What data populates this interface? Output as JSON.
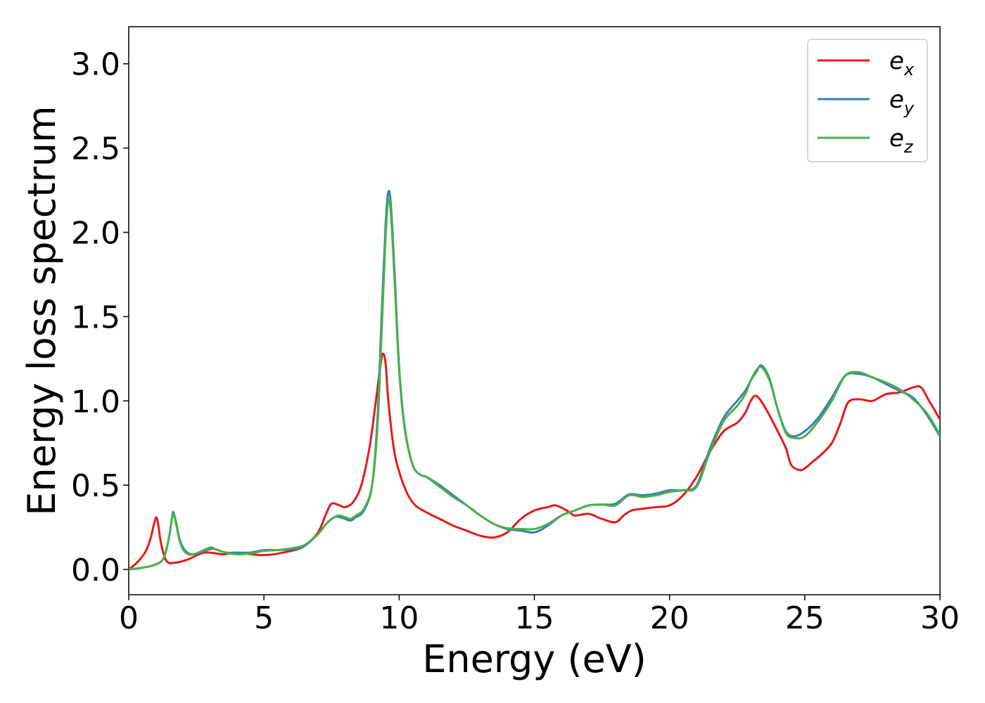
{
  "chart_data": {
    "type": "line",
    "title": "",
    "xlabel": "Energy (eV)",
    "ylabel": "Energy loss spectrum",
    "xlim": [
      0,
      30
    ],
    "ylim": [
      -0.15,
      3.22
    ],
    "xticks": [
      0,
      5,
      10,
      15,
      20,
      25,
      30
    ],
    "xtick_labels": [
      "0",
      "5",
      "10",
      "15",
      "20",
      "25",
      "30"
    ],
    "yticks": [
      0.0,
      0.5,
      1.0,
      1.5,
      2.0,
      2.5,
      3.0
    ],
    "ytick_labels": [
      "0.0",
      "0.5",
      "1.0",
      "1.5",
      "2.0",
      "2.5",
      "3.0"
    ],
    "grid": false,
    "legend_position": "top-right",
    "series": [
      {
        "name": "e",
        "subscript": "x",
        "color": "#e41a1c",
        "x": [
          0,
          0.3,
          0.6,
          0.8,
          0.95,
          1.05,
          1.2,
          1.4,
          1.7,
          2.2,
          2.8,
          3.5,
          4.0,
          5.0,
          6.0,
          6.5,
          7.0,
          7.3,
          7.5,
          7.8,
          8.0,
          8.3,
          8.6,
          8.9,
          9.1,
          9.3,
          9.4,
          9.5,
          9.6,
          9.8,
          10.0,
          10.3,
          10.6,
          11.0,
          11.5,
          12.0,
          12.5,
          13.0,
          13.5,
          14.0,
          14.5,
          15.0,
          15.5,
          15.8,
          16.2,
          16.5,
          17.0,
          17.5,
          18.0,
          18.3,
          18.6,
          19.0,
          19.5,
          20.0,
          20.5,
          21.0,
          21.5,
          22.0,
          22.5,
          22.8,
          23.0,
          23.2,
          23.5,
          24.0,
          24.3,
          24.5,
          24.8,
          25.0,
          25.3,
          25.6,
          26.0,
          26.3,
          26.6,
          27.0,
          27.5,
          28.0,
          28.5,
          29.0,
          29.3,
          29.6,
          30.0
        ],
        "y": [
          0.0,
          0.04,
          0.1,
          0.18,
          0.28,
          0.3,
          0.15,
          0.05,
          0.04,
          0.06,
          0.1,
          0.09,
          0.1,
          0.085,
          0.11,
          0.14,
          0.22,
          0.33,
          0.39,
          0.38,
          0.37,
          0.4,
          0.5,
          0.72,
          0.95,
          1.2,
          1.28,
          1.22,
          1.0,
          0.72,
          0.58,
          0.45,
          0.38,
          0.34,
          0.3,
          0.26,
          0.23,
          0.2,
          0.19,
          0.22,
          0.3,
          0.35,
          0.37,
          0.38,
          0.35,
          0.32,
          0.33,
          0.3,
          0.28,
          0.32,
          0.35,
          0.36,
          0.37,
          0.38,
          0.44,
          0.55,
          0.7,
          0.82,
          0.87,
          0.93,
          1.0,
          1.03,
          0.97,
          0.82,
          0.72,
          0.62,
          0.59,
          0.6,
          0.64,
          0.68,
          0.75,
          0.86,
          0.99,
          1.01,
          1.0,
          1.04,
          1.05,
          1.08,
          1.08,
          1.0,
          0.89
        ]
      },
      {
        "name": "e",
        "subscript": "y",
        "color": "#377eb8",
        "x": [
          0,
          0.5,
          1.0,
          1.3,
          1.5,
          1.6,
          1.65,
          1.75,
          1.9,
          2.1,
          2.4,
          3.0,
          3.2,
          3.6,
          4.0,
          4.5,
          5.0,
          5.5,
          6.0,
          6.5,
          7.0,
          7.3,
          7.6,
          7.8,
          8.0,
          8.2,
          8.4,
          8.7,
          9.0,
          9.2,
          9.35,
          9.5,
          9.6,
          9.7,
          9.85,
          10.0,
          10.2,
          10.5,
          10.8,
          11.0,
          11.5,
          12.0,
          12.5,
          13.0,
          13.5,
          14.0,
          14.5,
          15.0,
          15.5,
          16.0,
          16.5,
          17.0,
          17.5,
          18.0,
          18.5,
          19.0,
          19.5,
          20.0,
          20.5,
          21.0,
          21.5,
          22.0,
          22.5,
          22.8,
          23.0,
          23.2,
          23.4,
          23.7,
          24.0,
          24.3,
          24.6,
          25.0,
          25.5,
          26.0,
          26.5,
          27.0,
          27.5,
          28.0,
          28.5,
          29.0,
          29.5,
          30.0
        ],
        "y": [
          0.0,
          0.01,
          0.03,
          0.07,
          0.2,
          0.31,
          0.34,
          0.28,
          0.17,
          0.11,
          0.09,
          0.12,
          0.12,
          0.1,
          0.1,
          0.1,
          0.115,
          0.115,
          0.12,
          0.14,
          0.21,
          0.27,
          0.31,
          0.31,
          0.3,
          0.29,
          0.31,
          0.35,
          0.5,
          0.9,
          1.5,
          2.05,
          2.24,
          2.15,
          1.7,
          1.2,
          0.85,
          0.62,
          0.56,
          0.55,
          0.5,
          0.44,
          0.38,
          0.32,
          0.27,
          0.24,
          0.23,
          0.22,
          0.26,
          0.32,
          0.35,
          0.38,
          0.385,
          0.39,
          0.445,
          0.44,
          0.45,
          0.47,
          0.47,
          0.5,
          0.72,
          0.9,
          1.0,
          1.06,
          1.12,
          1.17,
          1.21,
          1.13,
          0.95,
          0.82,
          0.79,
          0.82,
          0.9,
          1.02,
          1.15,
          1.16,
          1.14,
          1.1,
          1.06,
          1.02,
          0.92,
          0.79
        ]
      },
      {
        "name": "e",
        "subscript": "z",
        "color": "#4daf4a",
        "x": [
          0,
          0.5,
          1.0,
          1.3,
          1.5,
          1.6,
          1.65,
          1.75,
          1.9,
          2.1,
          2.4,
          3.0,
          3.2,
          3.6,
          4.0,
          4.5,
          5.0,
          5.5,
          6.0,
          6.5,
          7.0,
          7.3,
          7.6,
          7.8,
          8.0,
          8.2,
          8.4,
          8.7,
          9.0,
          9.2,
          9.35,
          9.5,
          9.6,
          9.7,
          9.85,
          10.0,
          10.2,
          10.5,
          10.8,
          11.0,
          11.5,
          12.0,
          12.5,
          13.0,
          13.5,
          14.0,
          14.5,
          15.0,
          15.5,
          16.0,
          16.5,
          17.0,
          17.5,
          18.0,
          18.5,
          19.0,
          19.5,
          20.0,
          20.5,
          21.0,
          21.5,
          22.0,
          22.5,
          22.8,
          23.0,
          23.2,
          23.4,
          23.7,
          24.0,
          24.3,
          24.6,
          25.0,
          25.5,
          26.0,
          26.5,
          27.0,
          27.5,
          28.0,
          28.5,
          29.0,
          29.5,
          30.0
        ],
        "y": [
          0.0,
          0.01,
          0.03,
          0.07,
          0.2,
          0.31,
          0.33,
          0.27,
          0.16,
          0.1,
          0.09,
          0.13,
          0.12,
          0.1,
          0.09,
          0.095,
          0.11,
          0.115,
          0.125,
          0.145,
          0.21,
          0.27,
          0.31,
          0.32,
          0.31,
          0.3,
          0.32,
          0.36,
          0.5,
          0.85,
          1.4,
          1.98,
          2.19,
          2.1,
          1.65,
          1.18,
          0.84,
          0.62,
          0.56,
          0.55,
          0.49,
          0.43,
          0.38,
          0.32,
          0.27,
          0.245,
          0.24,
          0.24,
          0.27,
          0.32,
          0.35,
          0.38,
          0.385,
          0.38,
          0.44,
          0.43,
          0.44,
          0.46,
          0.47,
          0.49,
          0.7,
          0.88,
          0.97,
          1.04,
          1.12,
          1.18,
          1.2,
          1.12,
          0.95,
          0.81,
          0.78,
          0.79,
          0.88,
          1.0,
          1.15,
          1.17,
          1.14,
          1.11,
          1.07,
          1.01,
          0.93,
          0.8
        ]
      }
    ]
  }
}
